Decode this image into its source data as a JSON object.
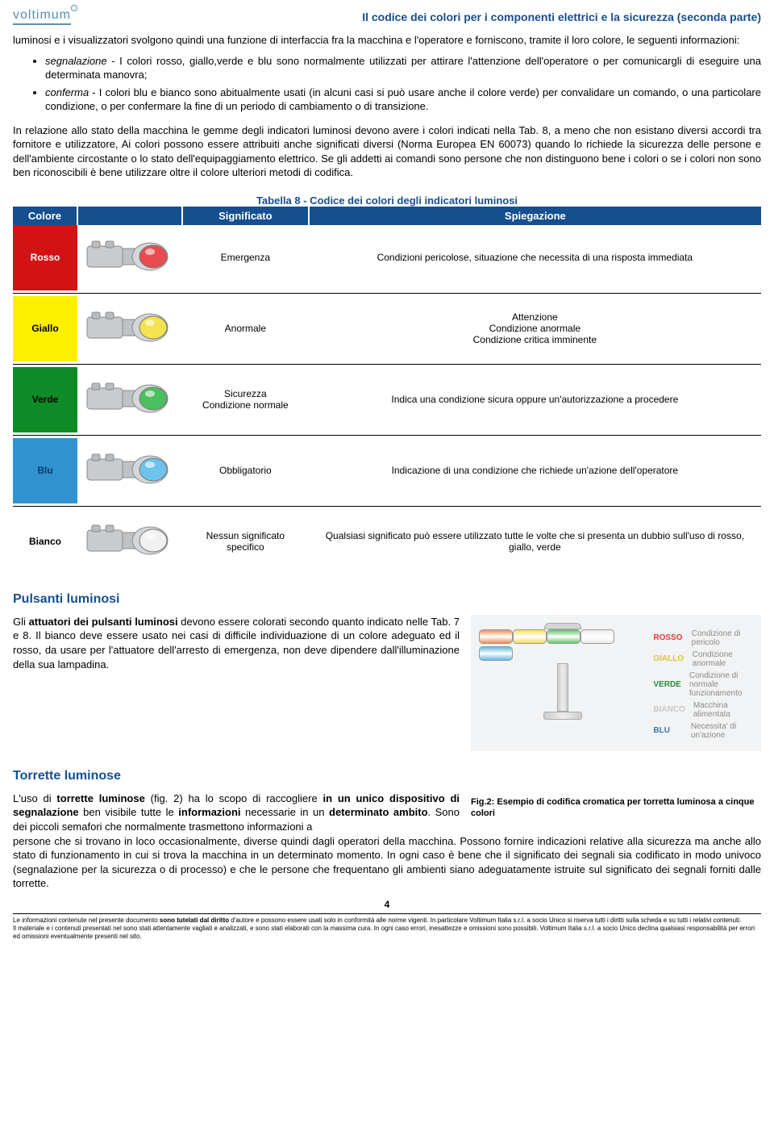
{
  "header": {
    "logo": "voltimum",
    "title": "Il codice dei colori per i componenti elettrici e la sicurezza (seconda parte)"
  },
  "intro": "luminosi e i visualizzatori svolgono quindi una funzione di interfaccia fra la macchina e l'operatore e forniscono, tramite il loro colore, le seguenti informazioni:",
  "bullets": [
    {
      "term": "segnalazione",
      "text": " - I colori rosso, giallo,verde e blu sono normalmente utilizzati per attirare l'attenzione dell'operatore o per comunicargli di eseguire una determinata manovra;"
    },
    {
      "term": "conferma",
      "text": " - I colori blu e bianco sono abitualmente usati (in alcuni casi si può usare anche il colore verde) per convalidare un comando, o una particolare condizione, o per confermare la fine di un periodo di cambiamento o di transizione."
    }
  ],
  "para2": "In relazione allo stato della macchina le gemme degli indicatori luminosi devono avere i colori indicati nella Tab. 8, a meno che non esistano diversi accordi tra fornitore e utilizzatore, Ai colori possono essere attribuiti anche significati diversi (Norma Europea EN 60073) quando lo richiede la sicurezza delle persone e dell'ambiente circostante o lo stato dell'equipaggiamento elettrico. Se gli addetti ai comandi sono persone che non distinguono bene i colori o se i colori non sono ben riconoscibili è bene utilizzare oltre il colore ulteriori metodi di codifica.",
  "table": {
    "caption": "Tabella 8 - Codice dei colori degli indicatori luminosi",
    "headers": [
      "Colore",
      "",
      "Significato",
      "Spiegazione"
    ],
    "rows": [
      {
        "name": "Rosso",
        "bg": "#d31216",
        "fg": "#ffffff",
        "lens": "#ea4b4e",
        "sig": "Emergenza",
        "exp": "Condizioni pericolose, situazione che necessita di una risposta immediata"
      },
      {
        "name": "Giallo",
        "bg": "#fff000",
        "fg": "#000000",
        "lens": "#f4e24e",
        "sig": "Anormale",
        "exp": "Attenzione\nCondizione anormale\nCondizione critica imminente"
      },
      {
        "name": "Verde",
        "bg": "#0d8b27",
        "fg": "#000000",
        "lens": "#4bbf5f",
        "sig": "Sicurezza\nCondizione normale",
        "exp": "Indica una condizione sicura oppure un'autorizzazione a procedere"
      },
      {
        "name": "Blu",
        "bg": "#3093d0",
        "fg": "#0a3a6a",
        "lens": "#6dc3eb",
        "sig": "Obbligatorio",
        "exp": "Indicazione di una condizione che richiede un'azione dell'operatore"
      },
      {
        "name": "Bianco",
        "bg": "#ffffff",
        "fg": "#000000",
        "lens": "#f1f1f1",
        "sig": "Nessun significato specifico",
        "exp": "Qualsiasi significato può essere utilizzato tutte le volte che si presenta un dubbio sull'uso di rosso, giallo, verde"
      }
    ]
  },
  "sec1": {
    "title": "Pulsanti luminosi",
    "text_1": "Gli ",
    "text_bold": "attuatori dei pulsanti luminosi",
    "text_2": " devono essere colorati secondo quanto indicato nelle Tab. 7 e 8. Il bianco deve essere usato nei casi di difficile individuazione di un colore adeguato ed il rosso, da usare per l'attuatore dell'arresto di emergenza, non deve dipendere dall'illuminazione della sua lampadina."
  },
  "tower": {
    "rows": [
      {
        "color": "#f28d52",
        "label": "ROSSO",
        "labelColor": "#e03a3a",
        "desc": "Condizione di pericolo"
      },
      {
        "color": "#f4df57",
        "label": "GIALLO",
        "labelColor": "#d9c82f",
        "desc": "Condizione anormale"
      },
      {
        "color": "#5fc76a",
        "label": "VERDE",
        "labelColor": "#2e8a3a",
        "desc": "Condizione di normale funzionamento"
      },
      {
        "color": "#ececec",
        "label": "BIANCO",
        "labelColor": "#c9c9c9",
        "desc": "Macchina alimentata"
      },
      {
        "color": "#5fb9e0",
        "label": "BLU",
        "labelColor": "#3a7aa8",
        "desc": "Necessita' di un'azione"
      }
    ]
  },
  "sec2": {
    "title": "Torrette luminose",
    "p1a": "L'uso di ",
    "p1b": "torrette luminose",
    "p1c": " (fig. 2) ha lo scopo di raccogliere ",
    "p1d": "in un unico dispositivo di segnalazione",
    "p1e": " ben visibile tutte le ",
    "p1f": "informazioni",
    "p1g": " necessarie in un ",
    "p1h": "determinato ambito",
    "p1i": ". Sono dei piccoli semafori che normalmente trasmettono informazioni a ",
    "p2": "persone che si trovano in loco occasionalmente, diverse quindi dagli operatori della macchina. Possono fornire indicazioni relative alla sicurezza ma anche allo stato di funzionamento in cui si trova la macchina in un determinato momento. In ogni caso è bene che il significato dei segnali sia codificato in modo univoco (segnalazione per la sicurezza o di processo) e che le persone che frequentano gli ambienti siano adeguatamente istruite sul significato dei segnali forniti dalle torrette.",
    "caption": "Fig.2: Esempio di codifica cromatica per torretta luminosa a cinque colori"
  },
  "page_num": "4",
  "footer": {
    "l1a": "Le informazioni contenute nel presente documento ",
    "l1b": "sono tutelati dal diritto",
    "l1c": " d'autore e possono essere usati solo in conformità alle norme vigenti. In particolare Voltimum Italia s.r.l. a socio Unico si riserva tutti i diritti sulla scheda e su tutti i relativi contenuti.",
    "l2": "Il materiale e i contenuti presentati nel sono stati attentamente vagliati e analizzati, e sono stati elaborati con la massima cura. In ogni caso errori, inesattezze e omissioni sono possibili. Voltimum Italia s.r.l. a socio Unico declina qualsiasi responsabilità per errori ed omissioni eventualmente presenti nel sito."
  }
}
